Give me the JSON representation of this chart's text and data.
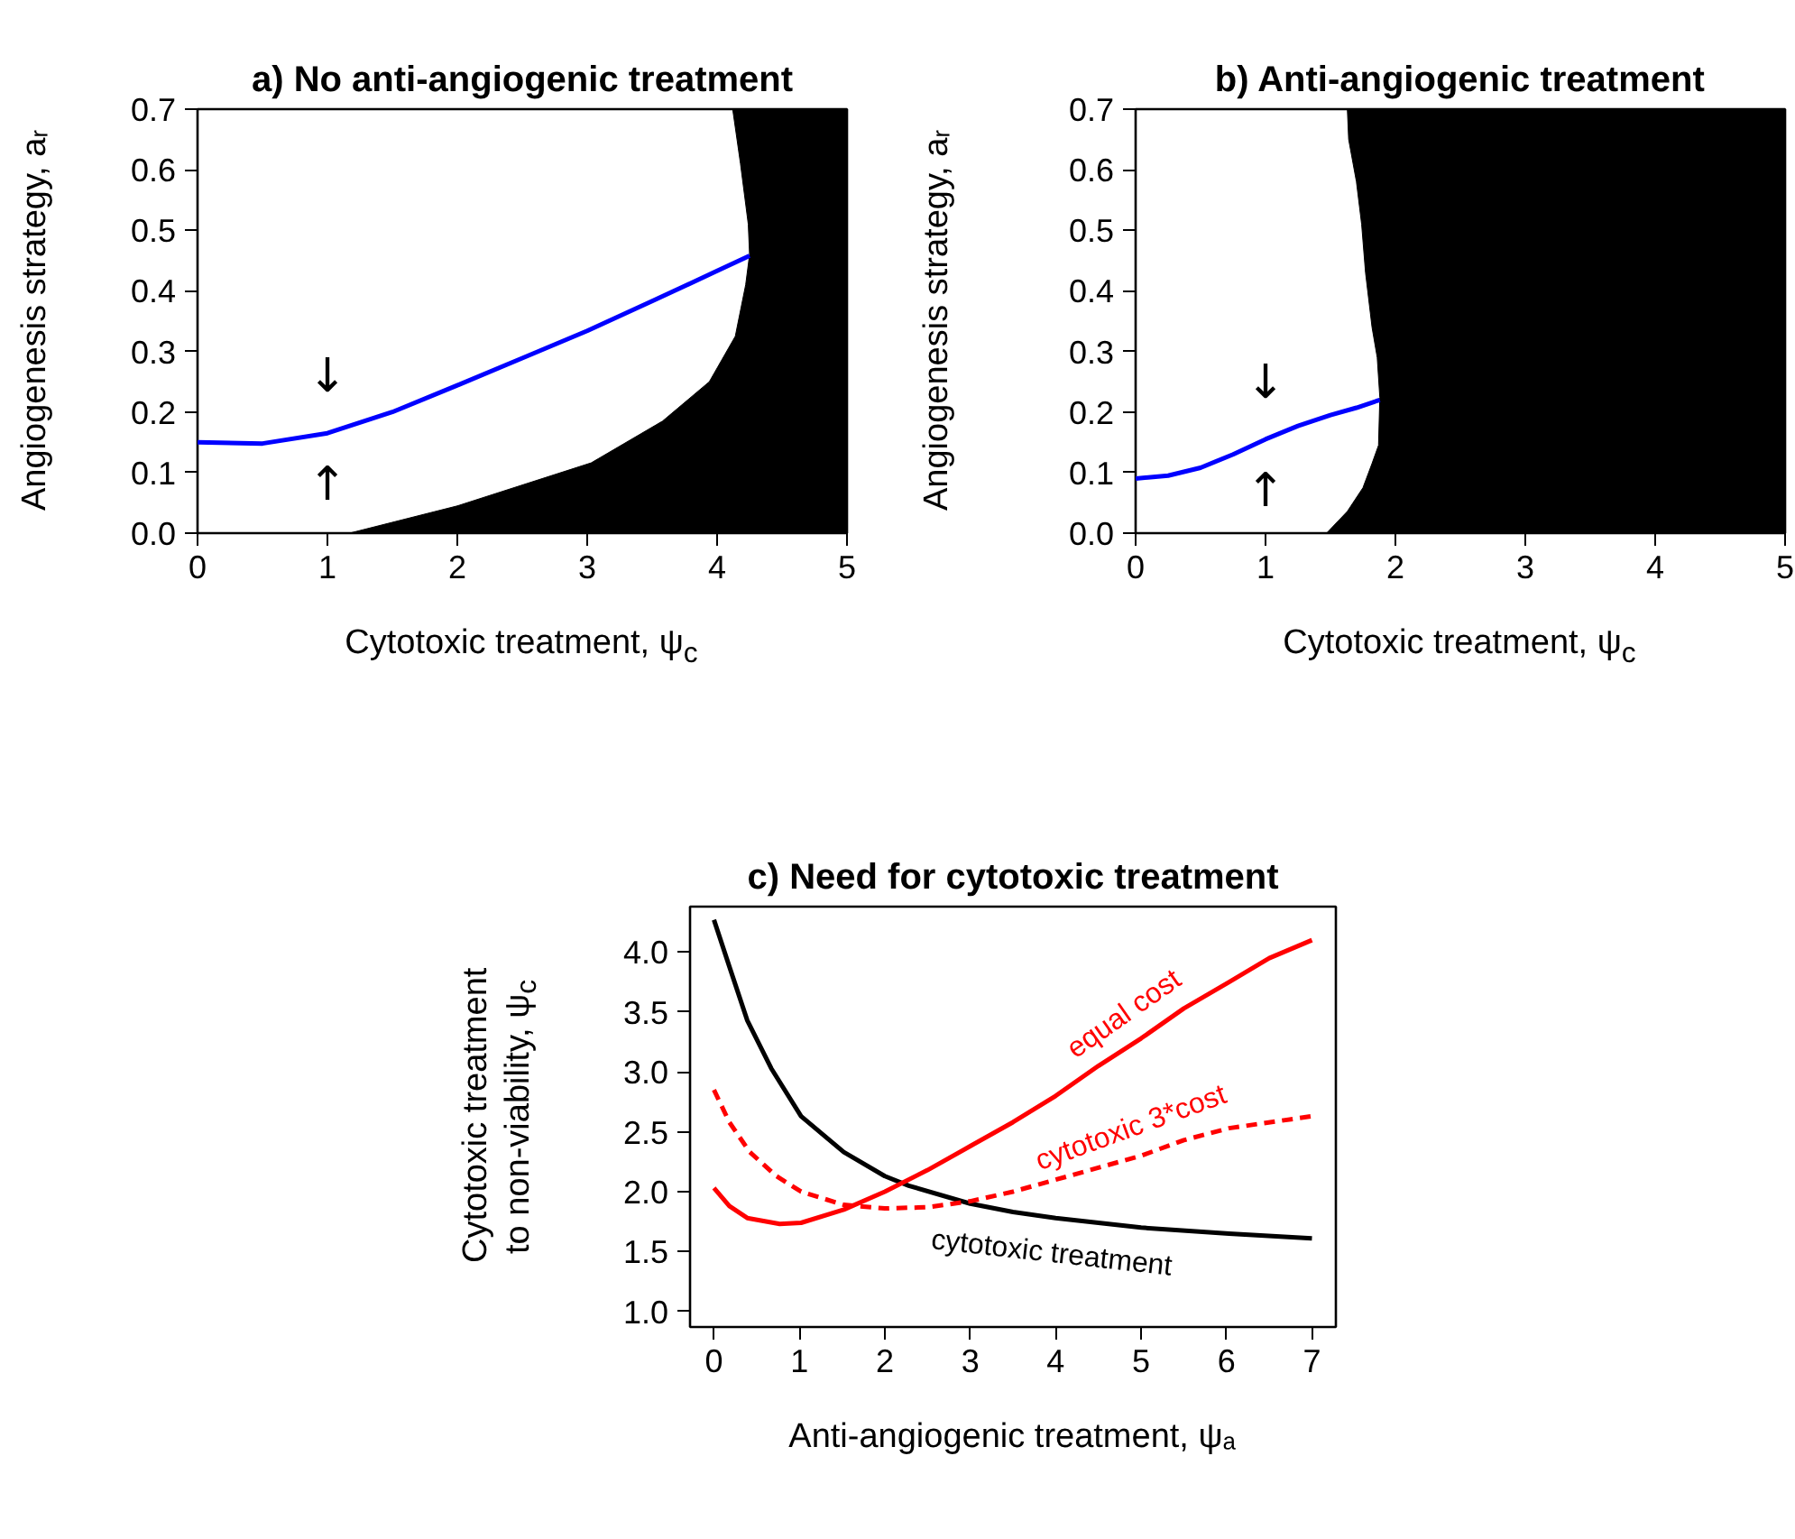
{
  "chart_data": [
    {
      "type": "line",
      "title": "a) No anti-angiogenic treatment",
      "xlabel": "Cytotoxic treatment, ψ$_{c}$",
      "ylabel": "Angiogenesis strategy, aᵣ",
      "xlim": [
        0,
        5
      ],
      "ylim": [
        0,
        0.7
      ],
      "xticks": [
        0,
        1,
        2,
        3,
        4,
        5
      ],
      "yticks": [
        {
          "value": 0,
          "label": "0.0"
        },
        0.1,
        0.2,
        0.3,
        0.4,
        0.5,
        0.6,
        0.7
      ],
      "grid": false,
      "series": [
        {
          "type": "area",
          "color": "#000000",
          "x": [
            1.17,
            2.0,
            3.03,
            3.58,
            3.94,
            4.14,
            4.22,
            4.25,
            4.24,
            4.18,
            4.12,
            5,
            5
          ],
          "values": [
            0,
            0.045,
            0.116,
            0.185,
            0.25,
            0.325,
            0.41,
            0.46,
            0.51,
            0.61,
            0.7,
            0.7,
            0
          ]
        },
        {
          "type": "line",
          "color": "#0000ff",
          "x": [
            0,
            0.5,
            1,
            1.5,
            2,
            2.5,
            3,
            3.5,
            4,
            4.25
          ],
          "values": [
            0.15,
            0.148,
            0.165,
            0.2,
            0.244,
            0.289,
            0.334,
            0.383,
            0.433,
            0.458
          ]
        }
      ],
      "annotations": [
        "↓",
        "↑"
      ]
    },
    {
      "type": "line",
      "title": "b) Anti-angiogenic treatment",
      "xlabel": "Cytotoxic treatment, ψ$_{c}$",
      "ylabel": "Angiogenesis strategy, aᵣ",
      "xlim": [
        0,
        5
      ],
      "ylim": [
        0,
        0.7
      ],
      "xticks": [
        0,
        1,
        2,
        3,
        4,
        5
      ],
      "yticks": [
        {
          "value": 0,
          "label": "0.0"
        },
        0.1,
        0.2,
        0.3,
        0.4,
        0.5,
        0.6,
        0.7
      ],
      "grid": false,
      "series": [
        {
          "type": "area",
          "color": "#000000",
          "x": [
            1.47,
            1.63,
            1.75,
            1.82,
            1.87,
            1.88,
            1.86,
            1.82,
            1.77,
            1.74,
            1.7,
            1.64,
            1.63,
            5,
            5
          ],
          "values": [
            0,
            0.036,
            0.075,
            0.115,
            0.145,
            0.224,
            0.29,
            0.34,
            0.43,
            0.51,
            0.58,
            0.65,
            0.7,
            0.7,
            0
          ]
        },
        {
          "type": "line",
          "color": "#0000ff",
          "x": [
            0,
            0.25,
            0.5,
            0.75,
            1,
            1.25,
            1.5,
            1.7,
            1.88
          ],
          "values": [
            0.09,
            0.095,
            0.108,
            0.13,
            0.155,
            0.177,
            0.195,
            0.207,
            0.22
          ]
        }
      ],
      "annotations": [
        "↓",
        "↑"
      ]
    },
    {
      "type": "line",
      "title": "c) Need for cytotoxic treatment",
      "xlabel": "Anti-angiogenic treatment, ψₐ",
      "ylabel": "Cytotoxic treatment\nto non-viability, ψ$_{c}$",
      "xlim": [
        -0.28,
        7.28
      ],
      "ylim": [
        0.87,
        4.38
      ],
      "xticks": [
        0,
        1,
        2,
        3,
        4,
        5,
        6,
        7
      ],
      "yticks": [
        {
          "value": 1,
          "label": "1.0"
        },
        1.5,
        {
          "value": 2,
          "label": "2.0"
        },
        2.5,
        {
          "value": 3,
          "label": "3.0"
        },
        3.5,
        {
          "value": 4,
          "label": "4.0"
        }
      ],
      "grid": false,
      "series": [
        {
          "name": "cytotoxic treatment",
          "color": "#000000",
          "line_style": "solid",
          "x": [
            0,
            0.18,
            0.39,
            0.67,
            1.02,
            1.52,
            2.0,
            2.28,
            3.0,
            3.5,
            4.0,
            5.0,
            6.03,
            7.0
          ],
          "values": [
            4.27,
            3.88,
            3.43,
            3.03,
            2.63,
            2.33,
            2.13,
            2.05,
            1.9,
            1.83,
            1.78,
            1.7,
            1.65,
            1.61
          ]
        },
        {
          "name": "equal cost",
          "color": "#ff0000",
          "line_style": "solid",
          "x": [
            0,
            0.18,
            0.39,
            0.77,
            1.02,
            1.52,
            2.0,
            2.5,
            3.0,
            3.5,
            4.0,
            4.5,
            5.0,
            5.5,
            6.03,
            6.5,
            7.0
          ],
          "values": [
            2.03,
            1.88,
            1.78,
            1.73,
            1.74,
            1.85,
            2.0,
            2.18,
            2.38,
            2.58,
            2.8,
            3.05,
            3.28,
            3.53,
            3.75,
            3.95,
            4.1
          ]
        },
        {
          "name": "cytotoxic 3*cost",
          "color": "#ff0000",
          "line_style": "dashed",
          "x": [
            0,
            0.18,
            0.42,
            0.73,
            1.02,
            1.52,
            2.0,
            2.5,
            3.0,
            3.5,
            4.0,
            4.5,
            5.0,
            5.5,
            6.03,
            7.0
          ],
          "values": [
            2.85,
            2.58,
            2.33,
            2.13,
            2.0,
            1.89,
            1.86,
            1.87,
            1.92,
            2.0,
            2.1,
            2.2,
            2.3,
            2.43,
            2.53,
            2.63
          ]
        }
      ]
    }
  ]
}
